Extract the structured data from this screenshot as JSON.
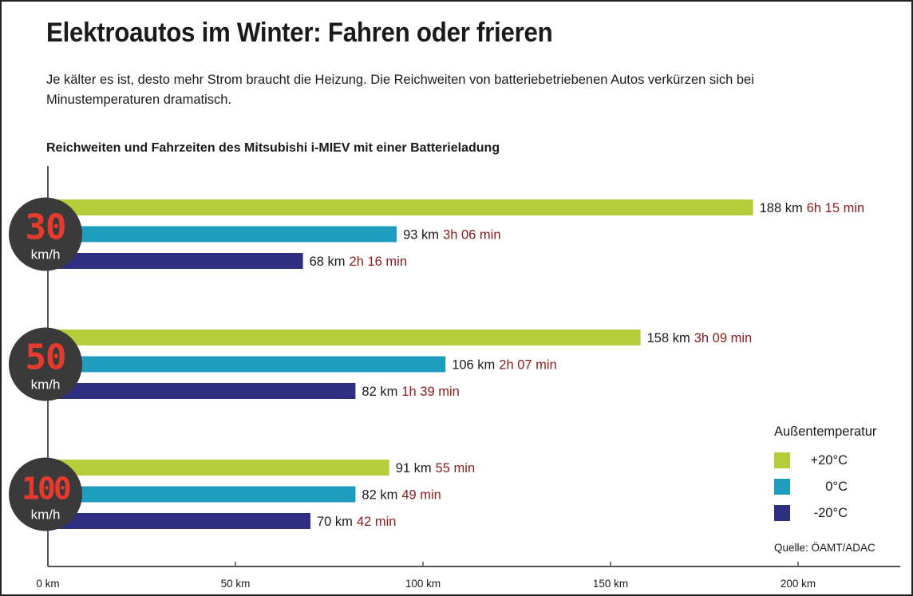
{
  "title": "Elektroautos im Winter: Fahren oder frieren",
  "subtitle": "Je kälter es ist, desto mehr Strom braucht die Heizung. Die Reichweiten von batteriebetriebenen Autos verkürzen sich bei Minustemperaturen dramatisch.",
  "source": "Quelle: ÖAMT/ADAC",
  "colors": {
    "plus20": "#b5cd3b",
    "zero": "#1e9cbe",
    "minus20": "#2f2f82",
    "time_text": "#8b1a1a",
    "badge_bg": "#3a3a3a",
    "badge_number": "#e63a2e",
    "axis": "#555555"
  },
  "chart_data": {
    "type": "bar",
    "orientation": "horizontal",
    "title": "Reichweiten und Fahrzeiten des Mitsubishi i-MIEV mit einer Batterieladung",
    "x_unit": "km",
    "xlim": [
      0,
      220
    ],
    "x_ticks": [
      0,
      50,
      100,
      150,
      200
    ],
    "x_tick_labels": [
      "0 km",
      "50 km",
      "100 km",
      "150 km",
      "200 km"
    ],
    "categories": [
      {
        "speed": "30",
        "unit": "km/h"
      },
      {
        "speed": "50",
        "unit": "km/h"
      },
      {
        "speed": "100",
        "unit": "km/h"
      }
    ],
    "legend_title": "Außentemperatur",
    "series": [
      {
        "name": "+20°C",
        "color_key": "plus20",
        "values": [
          188,
          158,
          91
        ],
        "distance_labels": [
          "188 km",
          "158 km",
          "91 km"
        ],
        "time_labels": [
          "6h 15 min",
          "3h 09 min",
          "55 min"
        ]
      },
      {
        "name": "0°C",
        "color_key": "zero",
        "values": [
          93,
          106,
          82
        ],
        "distance_labels": [
          "93 km",
          "106 km",
          "82 km"
        ],
        "time_labels": [
          "3h 06 min",
          "2h 07 min",
          "49 min"
        ]
      },
      {
        "name": "-20°C",
        "color_key": "minus20",
        "values": [
          68,
          82,
          70
        ],
        "distance_labels": [
          "68 km",
          "82 km",
          "70 km"
        ],
        "time_labels": [
          "2h 16 min",
          "1h 39 min",
          "42 min"
        ]
      }
    ]
  }
}
